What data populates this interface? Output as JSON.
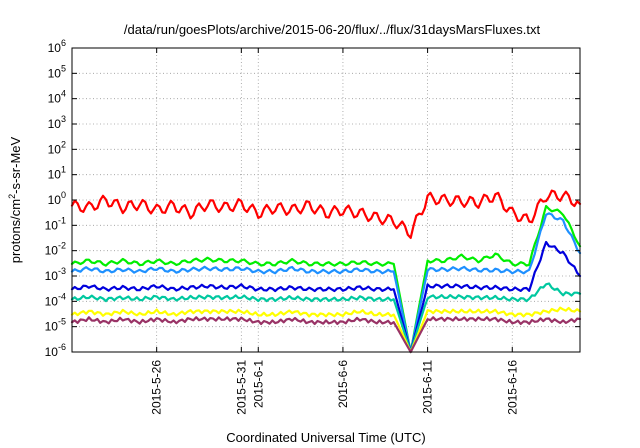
{
  "chart_data": {
    "type": "line",
    "title": "/data/run/goesPlots/archive/2015-06-20/flux/../flux/31daysMarsFluxes.txt",
    "xlabel": "Coordinated Universal Time (UTC)",
    "ylabel": {
      "pre": "protons/cm",
      "sup": "2",
      "post": "-s-sr-MeV"
    },
    "scale": {
      "y": "log"
    },
    "grid": true,
    "legend": "none",
    "xlim": [
      "2015-05-21",
      "2015-06-20"
    ],
    "ylim": [
      1e-06,
      1000000.0
    ],
    "x_ticks": [
      "2015-5-26",
      "2015-5-31",
      "2015-6-1",
      "2015-6-6",
      "2015-6-11",
      "2015-6-16"
    ],
    "x_tick_dates": [
      "2015-05-26",
      "2015-05-31",
      "2015-06-01",
      "2015-06-06",
      "2015-06-11",
      "2015-06-16"
    ],
    "y_ticks": [
      {
        "base": "10",
        "exp": "-6"
      },
      {
        "base": "10",
        "exp": "-5"
      },
      {
        "base": "10",
        "exp": "-4"
      },
      {
        "base": "10",
        "exp": "-3"
      },
      {
        "base": "10",
        "exp": "-2"
      },
      {
        "base": "10",
        "exp": "-1"
      },
      {
        "base": "10",
        "exp": "0"
      },
      {
        "base": "10",
        "exp": "1"
      },
      {
        "base": "10",
        "exp": "2"
      },
      {
        "base": "10",
        "exp": "3"
      },
      {
        "base": "10",
        "exp": "4"
      },
      {
        "base": "10",
        "exp": "5"
      },
      {
        "base": "10",
        "exp": "6"
      }
    ],
    "y_tick_values": [
      -6,
      -5,
      -4,
      -3,
      -2,
      -1,
      0,
      1,
      2,
      3,
      4,
      5,
      6
    ],
    "x": [
      "2015-05-21",
      "2015-05-22",
      "2015-05-23",
      "2015-05-24",
      "2015-05-25",
      "2015-05-26",
      "2015-05-27",
      "2015-05-28",
      "2015-05-29",
      "2015-05-30",
      "2015-05-31",
      "2015-06-01",
      "2015-06-02",
      "2015-06-03",
      "2015-06-04",
      "2015-06-05",
      "2015-06-06",
      "2015-06-07",
      "2015-06-08",
      "2015-06-09",
      "2015-06-10",
      "2015-06-11",
      "2015-06-12",
      "2015-06-13",
      "2015-06-14",
      "2015-06-15",
      "2015-06-16",
      "2015-06-17",
      "2015-06-18",
      "2015-06-19",
      "2015-06-20"
    ],
    "series": [
      {
        "color": "#ff0000",
        "values": [
          0.6,
          0.5,
          1.0,
          0.5,
          0.7,
          0.4,
          0.6,
          0.3,
          0.7,
          0.5,
          0.7,
          0.3,
          0.5,
          0.4,
          0.6,
          0.3,
          0.4,
          0.3,
          0.2,
          0.15,
          0.05,
          1.2,
          1.0,
          0.9,
          0.8,
          1.5,
          0.3,
          0.15,
          1.5,
          1.5,
          0.7
        ]
      },
      {
        "color": "#00ee00",
        "values": [
          0.003,
          0.004,
          0.003,
          0.004,
          0.003,
          0.004,
          0.003,
          0.004,
          0.0045,
          0.004,
          0.004,
          0.003,
          0.003,
          0.004,
          0.003,
          0.003,
          0.003,
          0.0035,
          0.003,
          0.003,
          1e-06,
          0.004,
          0.004,
          0.006,
          0.004,
          0.007,
          0.003,
          0.003,
          0.5,
          0.3,
          0.015
        ]
      },
      {
        "color": "#1e90ff",
        "values": [
          0.0015,
          0.002,
          0.0015,
          0.0018,
          0.0015,
          0.002,
          0.0015,
          0.0018,
          0.002,
          0.0018,
          0.002,
          0.0015,
          0.0015,
          0.002,
          0.0015,
          0.0015,
          0.0015,
          0.0018,
          0.0015,
          0.0015,
          1e-06,
          0.0018,
          0.0018,
          0.002,
          0.0017,
          0.0017,
          0.0015,
          0.0015,
          0.3,
          0.15,
          0.008
        ]
      },
      {
        "color": "#0000dd",
        "values": [
          0.0003,
          0.0004,
          0.0003,
          0.00035,
          0.0003,
          0.0004,
          0.0003,
          0.00035,
          0.0004,
          0.00035,
          0.0004,
          0.0003,
          0.0003,
          0.00035,
          0.0003,
          0.0003,
          0.0003,
          0.00035,
          0.0003,
          0.0003,
          1e-06,
          0.0004,
          0.0004,
          0.0004,
          0.00035,
          0.00035,
          0.0003,
          0.0003,
          0.02,
          0.008,
          0.001
        ]
      },
      {
        "color": "#00c8a0",
        "values": [
          0.00012,
          0.00015,
          0.00012,
          0.00014,
          0.00012,
          0.00015,
          0.00012,
          0.00014,
          0.00015,
          0.00014,
          0.00015,
          0.00012,
          0.00012,
          0.00014,
          0.00012,
          0.00012,
          0.00012,
          0.00014,
          0.00012,
          0.00012,
          1e-06,
          0.00015,
          0.00015,
          0.00015,
          0.00014,
          0.00014,
          0.00012,
          0.00012,
          0.0005,
          0.0002,
          0.0002
        ]
      },
      {
        "color": "#ffff00",
        "values": [
          3e-05,
          4e-05,
          3e-05,
          4e-05,
          3e-05,
          4e-05,
          3e-05,
          4e-05,
          4e-05,
          4e-05,
          4e-05,
          3e-05,
          3e-05,
          4e-05,
          3e-05,
          3e-05,
          3e-05,
          4e-05,
          3e-05,
          3e-05,
          1e-06,
          4e-05,
          4e-05,
          4e-05,
          4e-05,
          4e-05,
          3e-05,
          3e-05,
          4e-05,
          5e-05,
          4e-05
        ]
      },
      {
        "color": "#993366",
        "values": [
          1.5e-05,
          2e-05,
          1.5e-05,
          2e-05,
          1.5e-05,
          2e-05,
          1.5e-05,
          2e-05,
          2e-05,
          2e-05,
          2e-05,
          1.5e-05,
          1.5e-05,
          2e-05,
          1.5e-05,
          1.5e-05,
          1.5e-05,
          2e-05,
          1.5e-05,
          1.5e-05,
          1e-06,
          2e-05,
          2e-05,
          2e-05,
          2e-05,
          2e-05,
          1.5e-05,
          1.5e-05,
          2e-05,
          1.5e-05,
          2e-05
        ]
      }
    ]
  }
}
